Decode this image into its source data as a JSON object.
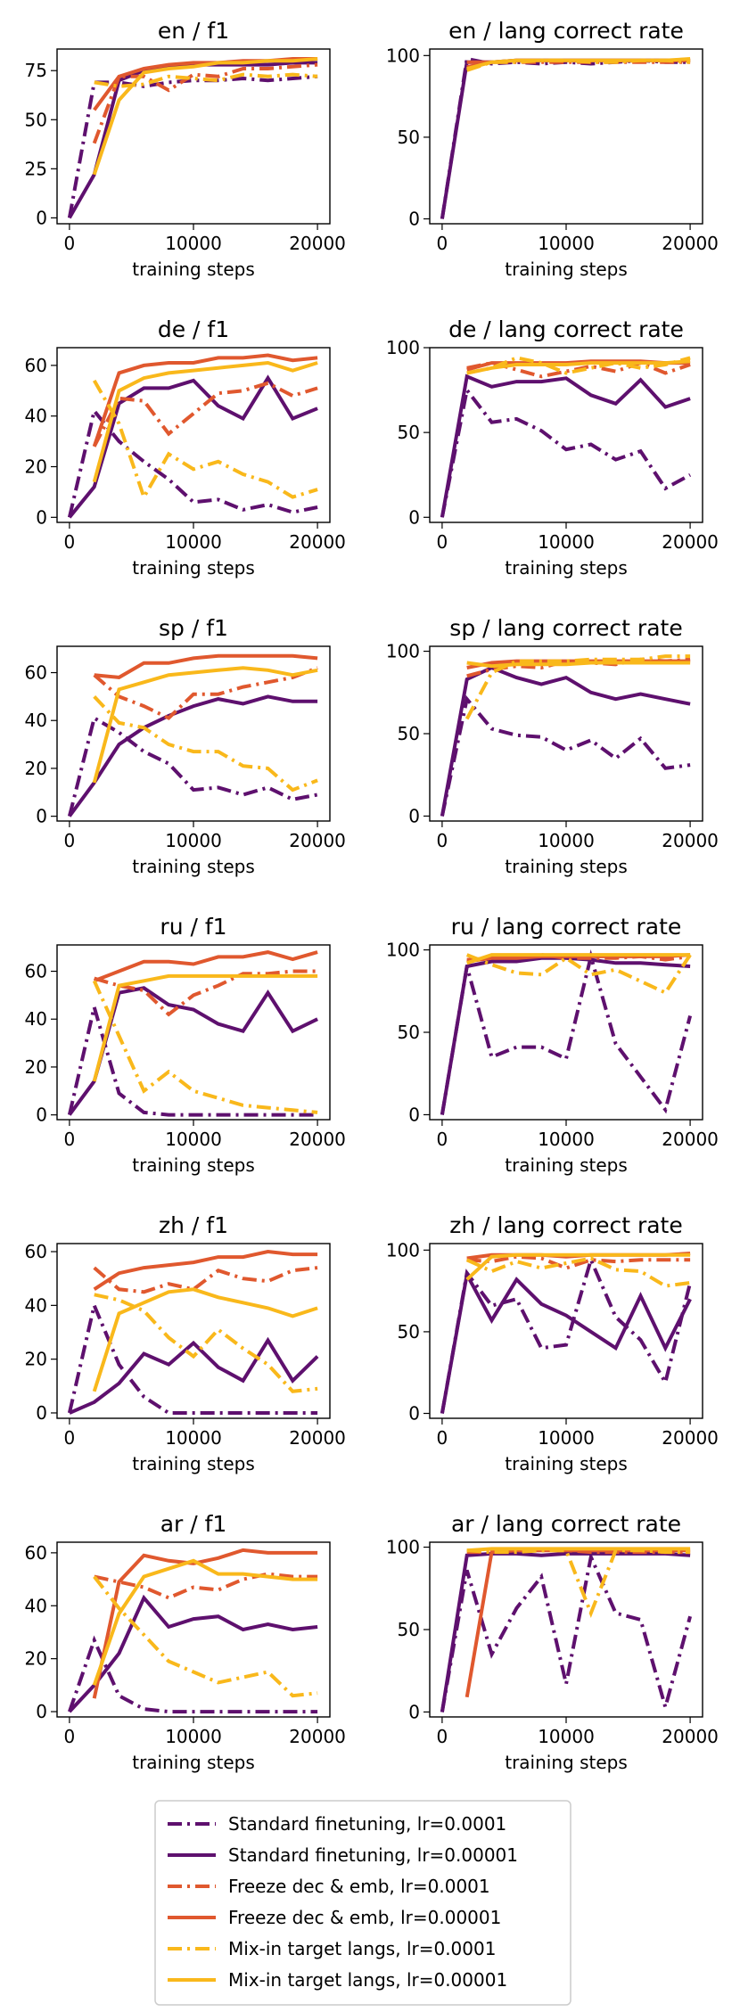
{
  "chart_data": {
    "type": "line",
    "x": [
      0,
      2000,
      4000,
      6000,
      8000,
      10000,
      12000,
      14000,
      16000,
      18000,
      20000
    ],
    "xlabel": "training steps",
    "xticks": [
      "0",
      "10000",
      "20000"
    ],
    "series_meta": [
      {
        "name": "Standard finetuning, lr=0.0001",
        "color": "#5e106e",
        "dash": "dashdot"
      },
      {
        "name": "Standard finetuning, lr=0.00001",
        "color": "#5e106e",
        "dash": "solid"
      },
      {
        "name": "Freeze dec & emb, lr=0.0001",
        "color": "#e0582e",
        "dash": "dashdot"
      },
      {
        "name": "Freeze dec & emb, lr=0.00001",
        "color": "#e0582e",
        "dash": "solid"
      },
      {
        "name": "Mix-in target langs, lr=0.0001",
        "color": "#f9b81b",
        "dash": "dashdot"
      },
      {
        "name": "Mix-in target langs, lr=0.00001",
        "color": "#f9b81b",
        "dash": "solid"
      }
    ],
    "panels": [
      {
        "title": "en / f1",
        "ylim": [
          -3,
          86
        ],
        "yticks": [
          0,
          25,
          50,
          75
        ],
        "series": [
          [
            0,
            69,
            69,
            67,
            69,
            70,
            70,
            71,
            70,
            71,
            72
          ],
          [
            0,
            22,
            70,
            75,
            77,
            78,
            78,
            78,
            78,
            79,
            79
          ],
          [
            null,
            38,
            72,
            72,
            65,
            73,
            72,
            76,
            76,
            77,
            78
          ],
          [
            null,
            55,
            72,
            76,
            78,
            79,
            79,
            80,
            80,
            81,
            81
          ],
          [
            null,
            69,
            67,
            68,
            72,
            71,
            70,
            73,
            72,
            73,
            72
          ],
          [
            null,
            22,
            60,
            74,
            76,
            77,
            79,
            79,
            80,
            80,
            81
          ]
        ]
      },
      {
        "title": "en / lang correct rate",
        "ylim": [
          -3,
          104
        ],
        "yticks": [
          0,
          50,
          100
        ],
        "series": [
          [
            0,
            98,
            95,
            96,
            95,
            96,
            95,
            96,
            97,
            96,
            96
          ],
          [
            0,
            96,
            96,
            97,
            97,
            97,
            97,
            97,
            97,
            97,
            97
          ],
          [
            null,
            93,
            96,
            96,
            96,
            96,
            96,
            96,
            96,
            96,
            96
          ],
          [
            null,
            96,
            96,
            97,
            97,
            97,
            97,
            97,
            97,
            97,
            97
          ],
          [
            null,
            91,
            96,
            96,
            97,
            97,
            96,
            96,
            97,
            97,
            96
          ],
          [
            null,
            92,
            96,
            97,
            97,
            97,
            97,
            97,
            97,
            97,
            98
          ]
        ]
      },
      {
        "title": "de / f1",
        "ylim": [
          -2,
          67
        ],
        "yticks": [
          0,
          20,
          40,
          60
        ],
        "series": [
          [
            0,
            42,
            30,
            22,
            15,
            6,
            7,
            3,
            5,
            2,
            4
          ],
          [
            0,
            12,
            45,
            51,
            51,
            54,
            44,
            39,
            55,
            39,
            43
          ],
          [
            null,
            28,
            47,
            46,
            33,
            41,
            49,
            50,
            53,
            48,
            51
          ],
          [
            null,
            28,
            57,
            60,
            61,
            61,
            63,
            63,
            64,
            62,
            63
          ],
          [
            null,
            54,
            37,
            8,
            25,
            19,
            22,
            17,
            14,
            8,
            11
          ],
          [
            null,
            14,
            50,
            55,
            57,
            58,
            59,
            60,
            61,
            58,
            61
          ]
        ]
      },
      {
        "title": "de / lang correct rate",
        "ylim": [
          -3,
          100
        ],
        "yticks": [
          0,
          50,
          100
        ],
        "series": [
          [
            0,
            75,
            56,
            58,
            51,
            40,
            43,
            34,
            39,
            17,
            25
          ],
          [
            0,
            83,
            77,
            80,
            80,
            82,
            72,
            67,
            81,
            65,
            70
          ],
          [
            null,
            88,
            91,
            87,
            83,
            86,
            89,
            86,
            91,
            85,
            90
          ],
          [
            null,
            87,
            91,
            91,
            91,
            91,
            92,
            92,
            92,
            91,
            91
          ],
          [
            null,
            85,
            88,
            94,
            91,
            85,
            88,
            91,
            88,
            90,
            94
          ],
          [
            null,
            85,
            88,
            90,
            90,
            90,
            91,
            91,
            91,
            91,
            92
          ]
        ]
      },
      {
        "title": "sp / f1",
        "ylim": [
          -2,
          71
        ],
        "yticks": [
          0,
          20,
          40,
          60
        ],
        "series": [
          [
            0,
            41,
            35,
            27,
            22,
            11,
            12,
            9,
            12,
            7,
            9
          ],
          [
            0,
            14,
            30,
            37,
            42,
            46,
            49,
            47,
            50,
            48,
            48
          ],
          [
            null,
            59,
            50,
            46,
            41,
            51,
            51,
            54,
            56,
            58,
            62
          ],
          [
            null,
            59,
            58,
            64,
            64,
            66,
            67,
            67,
            67,
            67,
            66
          ],
          [
            null,
            50,
            39,
            37,
            30,
            27,
            27,
            21,
            20,
            11,
            15
          ],
          [
            null,
            14,
            53,
            56,
            59,
            60,
            61,
            62,
            61,
            59,
            61
          ]
        ]
      },
      {
        "title": "sp / lang correct rate",
        "ylim": [
          -3,
          103
        ],
        "yticks": [
          0,
          50,
          100
        ],
        "series": [
          [
            0,
            71,
            53,
            49,
            48,
            40,
            46,
            35,
            47,
            29,
            31
          ],
          [
            0,
            83,
            90,
            84,
            80,
            84,
            75,
            71,
            74,
            71,
            68
          ],
          [
            null,
            85,
            89,
            91,
            90,
            94,
            93,
            92,
            95,
            94,
            95
          ],
          [
            null,
            90,
            93,
            94,
            94,
            94,
            94,
            94,
            94,
            94,
            94
          ],
          [
            null,
            59,
            87,
            94,
            94,
            94,
            95,
            95,
            95,
            97,
            97
          ],
          [
            null,
            93,
            91,
            92,
            92,
            92,
            93,
            93,
            93,
            93,
            93
          ]
        ]
      },
      {
        "title": "ru / f1",
        "ylim": [
          -2,
          71
        ],
        "yticks": [
          0,
          20,
          40,
          60
        ],
        "series": [
          [
            0,
            45,
            9,
            1,
            0,
            0,
            0,
            0,
            0,
            0,
            0
          ],
          [
            0,
            14,
            51,
            53,
            46,
            44,
            38,
            35,
            51,
            35,
            40
          ],
          [
            null,
            57,
            54,
            52,
            42,
            50,
            54,
            59,
            59,
            60,
            60
          ],
          [
            null,
            56,
            60,
            64,
            64,
            63,
            66,
            66,
            68,
            65,
            68
          ],
          [
            null,
            56,
            33,
            10,
            18,
            10,
            7,
            4,
            3,
            2,
            1
          ],
          [
            null,
            14,
            54,
            56,
            58,
            58,
            58,
            58,
            58,
            58,
            58
          ]
        ]
      },
      {
        "title": "ru / lang correct rate",
        "ylim": [
          -3,
          103
        ],
        "yticks": [
          0,
          50,
          100
        ],
        "series": [
          [
            0,
            90,
            35,
            41,
            41,
            34,
            96,
            43,
            23,
            3,
            60
          ],
          [
            0,
            90,
            93,
            93,
            95,
            95,
            94,
            92,
            92,
            91,
            90
          ],
          [
            null,
            94,
            95,
            96,
            97,
            95,
            95,
            95,
            96,
            94,
            96
          ],
          [
            null,
            93,
            95,
            95,
            96,
            96,
            96,
            96,
            96,
            96,
            97
          ],
          [
            null,
            97,
            91,
            86,
            85,
            95,
            85,
            88,
            81,
            74,
            97
          ],
          [
            null,
            92,
            97,
            97,
            97,
            97,
            97,
            97,
            97,
            97,
            97
          ]
        ]
      },
      {
        "title": "zh / f1",
        "ylim": [
          -2,
          63
        ],
        "yticks": [
          0,
          20,
          40,
          60
        ],
        "series": [
          [
            0,
            40,
            18,
            6,
            0,
            0,
            0,
            0,
            0,
            0,
            0
          ],
          [
            0,
            4,
            11,
            22,
            18,
            26,
            17,
            12,
            27,
            12,
            21
          ],
          [
            null,
            54,
            46,
            45,
            48,
            46,
            53,
            50,
            49,
            53,
            54
          ],
          [
            null,
            46,
            52,
            54,
            55,
            56,
            58,
            58,
            60,
            59,
            59
          ],
          [
            null,
            44,
            42,
            38,
            28,
            21,
            31,
            24,
            18,
            8,
            9
          ],
          [
            null,
            8,
            37,
            41,
            45,
            46,
            43,
            41,
            39,
            36,
            39
          ]
        ]
      },
      {
        "title": "zh / lang correct rate",
        "ylim": [
          -3,
          104
        ],
        "yticks": [
          0,
          50,
          100
        ],
        "series": [
          [
            0,
            86,
            66,
            70,
            40,
            42,
            94,
            59,
            45,
            19,
            80
          ],
          [
            0,
            85,
            57,
            82,
            67,
            60,
            50,
            40,
            72,
            40,
            70
          ],
          [
            null,
            94,
            93,
            96,
            95,
            89,
            94,
            93,
            94,
            94,
            94
          ],
          [
            null,
            95,
            97,
            97,
            97,
            96,
            97,
            97,
            97,
            97,
            98
          ],
          [
            null,
            94,
            87,
            93,
            89,
            92,
            95,
            88,
            87,
            78,
            80
          ],
          [
            null,
            82,
            96,
            97,
            97,
            97,
            97,
            97,
            97,
            97,
            97
          ]
        ]
      },
      {
        "title": "ar / f1",
        "ylim": [
          -2,
          64
        ],
        "yticks": [
          0,
          20,
          40,
          60
        ],
        "series": [
          [
            0,
            27,
            6,
            1,
            0,
            0,
            0,
            0,
            0,
            0,
            0
          ],
          [
            0,
            10,
            22,
            43,
            32,
            35,
            36,
            31,
            33,
            31,
            32
          ],
          [
            null,
            51,
            49,
            47,
            43,
            47,
            46,
            50,
            52,
            51,
            51
          ],
          [
            null,
            5,
            49,
            59,
            57,
            56,
            58,
            61,
            60,
            60,
            60
          ],
          [
            null,
            51,
            39,
            29,
            19,
            15,
            11,
            13,
            15,
            6,
            7
          ],
          [
            null,
            10,
            37,
            51,
            54,
            57,
            52,
            52,
            51,
            50,
            50
          ]
        ]
      },
      {
        "title": "ar / lang correct rate",
        "ylim": [
          -3,
          103
        ],
        "yticks": [
          0,
          50,
          100
        ],
        "series": [
          [
            0,
            86,
            35,
            63,
            82,
            17,
            94,
            60,
            56,
            3,
            58
          ],
          [
            0,
            95,
            96,
            96,
            95,
            96,
            96,
            96,
            96,
            96,
            95
          ],
          [
            null,
            97,
            97,
            98,
            98,
            98,
            97,
            97,
            97,
            97,
            97
          ],
          [
            null,
            9,
            97,
            98,
            98,
            98,
            98,
            98,
            98,
            98,
            98
          ],
          [
            null,
            98,
            97,
            97,
            98,
            98,
            60,
            98,
            98,
            97,
            97
          ],
          [
            null,
            98,
            99,
            99,
            99,
            99,
            99,
            99,
            99,
            99,
            99
          ]
        ]
      }
    ]
  }
}
